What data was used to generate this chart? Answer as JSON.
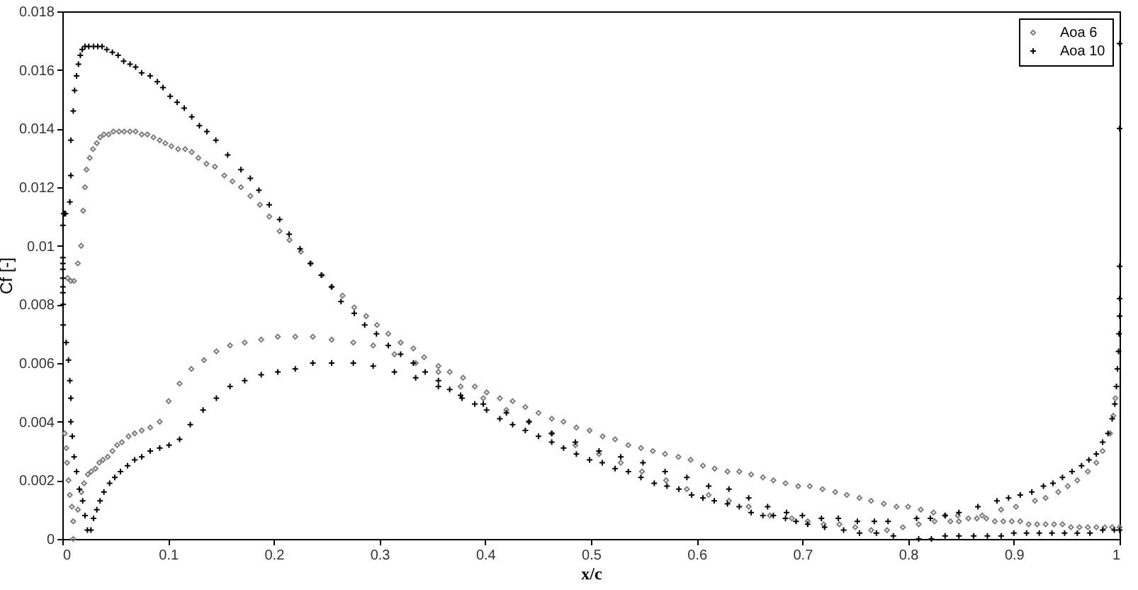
{
  "chart_data": {
    "type": "scatter",
    "xlabel": "x/c",
    "ylabel": "Cf [-]",
    "xlim": [
      0,
      1
    ],
    "ylim": [
      0,
      0.018
    ],
    "xticks": [
      0,
      0.1,
      0.2,
      0.3,
      0.4,
      0.5,
      0.6,
      0.7,
      0.8,
      0.9,
      1
    ],
    "yticks": [
      0,
      0.002,
      0.004,
      0.006,
      0.008,
      0.01,
      0.012,
      0.014,
      0.016,
      0.018
    ],
    "legend": "top right",
    "series": [
      {
        "name": "Aoa 6",
        "color": "#7f7f7f",
        "marker": "diamond",
        "x": [
          0.0023,
          0.0036,
          0.0045,
          0.0058,
          0.0071,
          0.009,
          0.0103,
          0.0103,
          0.005,
          0.008,
          0.011,
          0.0147,
          0.0178,
          0.0197,
          0.0214,
          0.0228,
          0.0259,
          0.029,
          0.0326,
          0.0357,
          0.0393,
          0.0438,
          0.0483,
          0.0536,
          0.0585,
          0.0639,
          0.0693,
          0.0751,
          0.0804,
          0.0862,
          0.0921,
          0.0974,
          0.1032,
          0.1095,
          0.1162,
          0.1224,
          0.1287,
          0.1363,
          0.1443,
          0.1532,
          0.1609,
          0.1689,
          0.1778,
          0.1868,
          0.1957,
          0.2055,
          0.2149,
          0.2256,
          0.235,
          0.2457,
          0.2547,
          0.265,
          0.2761,
          0.2873,
          0.2976,
          0.3083,
          0.32,
          0.332,
          0.3422,
          0.3557,
          0.3664,
          0.379,
          0.3901,
          0.4013,
          0.4138,
          0.4259,
          0.4379,
          0.4504,
          0.4629,
          0.4741,
          0.4862,
          0.4987,
          0.5111,
          0.5228,
          0.5353,
          0.5473,
          0.5585,
          0.5701,
          0.5827,
          0.5942,
          0.6059,
          0.617,
          0.6291,
          0.6403,
          0.6515,
          0.6626,
          0.6725,
          0.684,
          0.696,
          0.707,
          0.719,
          0.731,
          0.742,
          0.754,
          0.765,
          0.777,
          0.789,
          0.8,
          0.812,
          0.824,
          0.835,
          0.847,
          0.857,
          0.865,
          0.874,
          0.882,
          0.89,
          0.898,
          0.906,
          0.914,
          0.922,
          0.93,
          0.938,
          0.946,
          0.954,
          0.962,
          0.97,
          0.978,
          0.986,
          0.993,
          1.0,
          0.0147,
          0.0179,
          0.0206,
          0.0241,
          0.0273,
          0.0313,
          0.0349,
          0.0384,
          0.0429,
          0.0474,
          0.0518,
          0.0563,
          0.0626,
          0.0684,
          0.0751,
          0.0831,
          0.0921,
          0.1005,
          0.1109,
          0.122,
          0.134,
          0.1457,
          0.1586,
          0.1725,
          0.1881,
          0.2038,
          0.2203,
          0.2369,
          0.2547,
          0.2752,
          0.294,
          0.3141,
          0.3342,
          0.3557,
          0.3767,
          0.3981,
          0.42,
          0.4414,
          0.4629,
          0.4853,
          0.5076,
          0.5282,
          0.5483,
          0.571,
          0.5907,
          0.6113,
          0.6305,
          0.6492,
          0.6693,
          0.69,
          0.705,
          0.72,
          0.735,
          0.75,
          0.765,
          0.78,
          0.795,
          0.81,
          0.825,
          0.84,
          0.848,
          0.87,
          0.888,
          0.902,
          0.92,
          0.93,
          0.942,
          0.951,
          0.96,
          0.97,
          0.978,
          0.984,
          0.991,
          0.994,
          0.996
        ],
        "values": [
          0.0036,
          0.0031,
          0.0026,
          0.002,
          0.0015,
          0.0011,
          0.0006,
          0.0,
          0.0089,
          0.0088,
          0.0088,
          0.0094,
          0.01,
          0.0112,
          0.012,
          0.0126,
          0.013,
          0.0133,
          0.0135,
          0.0137,
          0.0138,
          0.0138,
          0.0139,
          0.0139,
          0.0139,
          0.0139,
          0.0139,
          0.0138,
          0.0138,
          0.0137,
          0.0136,
          0.0135,
          0.0134,
          0.0133,
          0.0133,
          0.0132,
          0.013,
          0.0128,
          0.0127,
          0.0124,
          0.0122,
          0.012,
          0.0117,
          0.0114,
          0.011,
          0.0105,
          0.0102,
          0.0098,
          0.0094,
          0.009,
          0.0086,
          0.0083,
          0.0079,
          0.0076,
          0.0073,
          0.007,
          0.0067,
          0.0065,
          0.0062,
          0.0059,
          0.0057,
          0.0055,
          0.0052,
          0.005,
          0.0048,
          0.0047,
          0.0045,
          0.0043,
          0.0041,
          0.004,
          0.0038,
          0.0037,
          0.0035,
          0.0034,
          0.0032,
          0.0031,
          0.003,
          0.0029,
          0.0028,
          0.0027,
          0.0025,
          0.0024,
          0.0023,
          0.0023,
          0.0022,
          0.0021,
          0.002,
          0.0019,
          0.0018,
          0.0018,
          0.0017,
          0.0016,
          0.0015,
          0.0014,
          0.0013,
          0.0012,
          0.0011,
          0.0011,
          0.001,
          0.0009,
          0.0008,
          0.0008,
          0.0007,
          0.0007,
          0.0007,
          0.0006,
          0.0006,
          0.0006,
          0.0006,
          0.0005,
          0.0005,
          0.0005,
          0.0005,
          0.0005,
          0.0004,
          0.0004,
          0.0004,
          0.0004,
          0.0004,
          0.0004,
          0.0004,
          0.001,
          0.0016,
          0.0019,
          0.0022,
          0.0023,
          0.0024,
          0.0026,
          0.0027,
          0.0028,
          0.003,
          0.0032,
          0.0033,
          0.0035,
          0.0036,
          0.0037,
          0.0038,
          0.004,
          0.0047,
          0.0053,
          0.0058,
          0.0061,
          0.0064,
          0.0066,
          0.0067,
          0.0068,
          0.0069,
          0.0069,
          0.0069,
          0.0068,
          0.0067,
          0.0066,
          0.0063,
          0.006,
          0.0057,
          0.0052,
          0.0048,
          0.0044,
          0.004,
          0.0036,
          0.0032,
          0.0029,
          0.0026,
          0.0023,
          0.002,
          0.0017,
          0.0015,
          0.0013,
          0.0011,
          0.0008,
          0.0007,
          0.0006,
          0.0005,
          0.0005,
          0.0004,
          0.0003,
          0.0003,
          0.0004,
          0.0005,
          0.0006,
          0.0006,
          0.0006,
          0.0008,
          0.001,
          0.0011,
          0.0013,
          0.0014,
          0.0016,
          0.0018,
          0.002,
          0.0023,
          0.0026,
          0.003,
          0.0036,
          0.0042,
          0.0048
        ]
      },
      {
        "name": "Aoa 10",
        "color": "#000000",
        "marker": "cross",
        "x": [
          0.0013,
          0.002,
          0.003,
          0.0005,
          0.0005,
          0.0005,
          0.0005,
          0.0005,
          0.0005,
          0.0005,
          0.0008,
          0.0008,
          0.0036,
          0.0058,
          0.0071,
          0.008,
          0.008,
          0.0094,
          0.0111,
          0.0134,
          0.0161,
          0.0192,
          0.0214,
          0.0237,
          0.027,
          0.0071,
          0.008,
          0.008,
          0.0103,
          0.0116,
          0.0134,
          0.0152,
          0.017,
          0.0188,
          0.0214,
          0.025,
          0.0295,
          0.0335,
          0.0375,
          0.042,
          0.0473,
          0.0527,
          0.058,
          0.064,
          0.0693,
          0.075,
          0.083,
          0.0898,
          0.0952,
          0.102,
          0.1086,
          0.1153,
          0.1224,
          0.1296,
          0.1367,
          0.1452,
          0.1564,
          0.1689,
          0.1778,
          0.1859,
          0.1957,
          0.2055,
          0.2145,
          0.2248,
          0.2346,
          0.2449,
          0.2547,
          0.2636,
          0.2761,
          0.286,
          0.2971,
          0.3083,
          0.32,
          0.332,
          0.3432,
          0.3557,
          0.3664,
          0.378,
          0.3901,
          0.4013,
          0.4138,
          0.4259,
          0.4379,
          0.4504,
          0.4629,
          0.4741,
          0.4862,
          0.4987,
          0.5107,
          0.5228,
          0.5353,
          0.5473,
          0.5599,
          0.5719,
          0.5831,
          0.5952,
          0.6059,
          0.6166,
          0.6291,
          0.6403,
          0.6515,
          0.6626,
          0.6725,
          0.684,
          0.694,
          0.705,
          0.721,
          0.739,
          0.754,
          0.77,
          0.786,
          0.81,
          0.822,
          0.835,
          0.848,
          0.862,
          0.875,
          0.888,
          0.9,
          0.912,
          0.924,
          0.936,
          0.948,
          0.96,
          0.972,
          0.984,
          0.995,
          1.0,
          0.0295,
          0.0326,
          0.0357,
          0.0393,
          0.0447,
          0.0496,
          0.055,
          0.0617,
          0.0684,
          0.0751,
          0.0831,
          0.0921,
          0.1009,
          0.1109,
          0.121,
          0.1331,
          0.1457,
          0.1586,
          0.1725,
          0.1881,
          0.2038,
          0.2203,
          0.2369,
          0.2547,
          0.2752,
          0.294,
          0.3141,
          0.3342,
          0.3557,
          0.3767,
          0.3981,
          0.42,
          0.4414,
          0.4629,
          0.4853,
          0.5076,
          0.5282,
          0.5492,
          0.5701,
          0.5907,
          0.6113,
          0.6305,
          0.6492,
          0.6671,
          0.685,
          0.7,
          0.718,
          0.734,
          0.752,
          0.768,
          0.781,
          0.808,
          0.821,
          0.835,
          0.848,
          0.866,
          0.884,
          0.895,
          0.906,
          0.917,
          0.928,
          0.937,
          0.946,
          0.955,
          0.964,
          0.971,
          0.978,
          0.984,
          0.989,
          0.993,
          0.9955,
          0.997,
          0.998,
          0.999,
          0.9995,
          1.0,
          1.0,
          1.0,
          1.0,
          1.0
        ],
        "values": [
          0.0111,
          0.0111,
          0.0111,
          0.0107,
          0.0096,
          0.0094,
          0.0092,
          0.0089,
          0.0086,
          0.0084,
          0.008,
          0.0073,
          0.0067,
          0.0061,
          0.0054,
          0.0048,
          0.004,
          0.0035,
          0.0028,
          0.0023,
          0.0017,
          0.0013,
          0.0008,
          0.0003,
          0.0003,
          0.0115,
          0.0124,
          0.0136,
          0.0146,
          0.0153,
          0.0158,
          0.0162,
          0.0165,
          0.0167,
          0.0168,
          0.0168,
          0.0168,
          0.0168,
          0.0168,
          0.0167,
          0.0166,
          0.0165,
          0.0163,
          0.0162,
          0.0161,
          0.0159,
          0.0158,
          0.0156,
          0.0154,
          0.0151,
          0.0149,
          0.0147,
          0.0144,
          0.0141,
          0.0139,
          0.0136,
          0.0131,
          0.0126,
          0.0123,
          0.0119,
          0.0114,
          0.0109,
          0.0104,
          0.0099,
          0.0094,
          0.009,
          0.0086,
          0.0081,
          0.0077,
          0.0073,
          0.007,
          0.0066,
          0.0063,
          0.006,
          0.0057,
          0.0054,
          0.0051,
          0.0048,
          0.0046,
          0.0044,
          0.0041,
          0.0039,
          0.0037,
          0.0035,
          0.0033,
          0.0031,
          0.0029,
          0.0027,
          0.0026,
          0.0024,
          0.0023,
          0.0021,
          0.0019,
          0.0018,
          0.0017,
          0.0015,
          0.0014,
          0.0013,
          0.0012,
          0.0011,
          0.0009,
          0.0008,
          0.0008,
          0.0007,
          0.0006,
          0.0005,
          0.0004,
          0.0003,
          0.0002,
          0.0002,
          0.0001,
          0.0,
          0.0,
          0.0001,
          0.0001,
          0.0001,
          0.0001,
          0.0001,
          0.0002,
          0.0002,
          0.0002,
          0.0002,
          0.0002,
          0.0002,
          0.0002,
          0.0003,
          0.0003,
          0.0003,
          0.0007,
          0.001,
          0.0013,
          0.0016,
          0.0019,
          0.0021,
          0.0023,
          0.0025,
          0.0027,
          0.0028,
          0.003,
          0.0031,
          0.0032,
          0.0034,
          0.0039,
          0.0044,
          0.0048,
          0.0052,
          0.0054,
          0.0056,
          0.0057,
          0.0058,
          0.006,
          0.006,
          0.006,
          0.0059,
          0.0057,
          0.0055,
          0.0052,
          0.0049,
          0.0046,
          0.0043,
          0.004,
          0.0036,
          0.0033,
          0.003,
          0.0028,
          0.0026,
          0.0023,
          0.0021,
          0.0018,
          0.0017,
          0.0014,
          0.0011,
          0.0009,
          0.0008,
          0.0007,
          0.0007,
          0.0006,
          0.0006,
          0.0006,
          0.0007,
          0.0007,
          0.0008,
          0.0009,
          0.0011,
          0.0013,
          0.0014,
          0.0015,
          0.0016,
          0.0018,
          0.0019,
          0.0021,
          0.0023,
          0.0025,
          0.0027,
          0.0029,
          0.0033,
          0.0036,
          0.0041,
          0.0046,
          0.0052,
          0.0058,
          0.0064,
          0.007,
          0.0076,
          0.0082,
          0.0093,
          0.014,
          0.0169
        ]
      }
    ]
  }
}
